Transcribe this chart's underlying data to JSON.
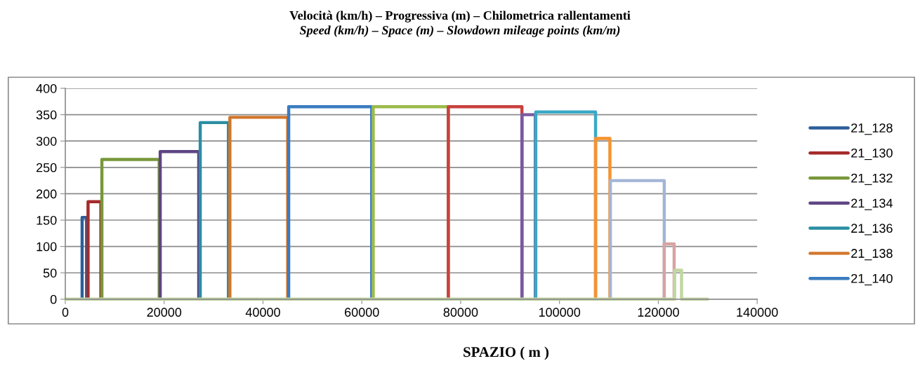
{
  "chart_data": {
    "type": "line",
    "title": "Velocità (km/h) – Progressiva (m) – Chilometrica rallentamenti",
    "subtitle": "Speed (km/h) – Space (m) – Slowdown mileage points (km/m)",
    "xlabel": "SPAZIO ( m )",
    "xlim": [
      0,
      140000
    ],
    "xticks": [
      0,
      20000,
      40000,
      60000,
      80000,
      100000,
      120000,
      140000
    ],
    "ylim": [
      0,
      400
    ],
    "yticks": [
      0,
      50,
      100,
      150,
      200,
      250,
      300,
      350,
      400
    ],
    "grid": "y",
    "legend": "right",
    "marker": "none",
    "line_style": "solid",
    "series": [
      {
        "name": "21_128",
        "color": "#2c5f9a",
        "x": [
          3400,
          3400,
          4300,
          4300
        ],
        "values": [
          0,
          155,
          155,
          0
        ]
      },
      {
        "name": "21_130",
        "color": "#a52a2a",
        "x": [
          4600,
          4600,
          7200,
          7200
        ],
        "values": [
          0,
          185,
          185,
          0
        ]
      },
      {
        "name": "21_132",
        "color": "#77973a",
        "x": [
          7400,
          7400,
          19000,
          19000
        ],
        "values": [
          0,
          265,
          265,
          0
        ]
      },
      {
        "name": "21_134",
        "color": "#5f4584",
        "x": [
          19200,
          19200,
          27000,
          27000
        ],
        "values": [
          0,
          280,
          280,
          0
        ]
      },
      {
        "name": "21_136",
        "color": "#2a8ea3",
        "x": [
          27300,
          27300,
          33000,
          33000
        ],
        "values": [
          0,
          335,
          335,
          0
        ]
      },
      {
        "name": "21_138",
        "color": "#d2762b",
        "x": [
          33300,
          33300,
          45000,
          45000
        ],
        "values": [
          0,
          345,
          345,
          0
        ]
      },
      {
        "name": "21_140",
        "color": "#3a7cc0",
        "x": [
          45200,
          45200,
          62000,
          62000
        ],
        "values": [
          0,
          365,
          365,
          0
        ]
      },
      {
        "color": "#9bbb4b",
        "x": [
          62300,
          62300,
          77500,
          77500
        ],
        "values": [
          0,
          365,
          365,
          0
        ]
      },
      {
        "color": "#c8413e",
        "x": [
          77500,
          77500,
          92400,
          92400
        ],
        "values": [
          0,
          365,
          365,
          0
        ]
      },
      {
        "color": "#7b58a0",
        "x": [
          92400,
          92400,
          95100,
          95100
        ],
        "values": [
          0,
          350,
          350,
          0
        ]
      },
      {
        "color": "#3aa8c4",
        "x": [
          95200,
          95200,
          107300,
          107300
        ],
        "values": [
          0,
          355,
          355,
          0
        ]
      },
      {
        "color": "#f7922e",
        "x": [
          107300,
          107300,
          110200,
          110200
        ],
        "values": [
          0,
          305,
          305,
          0
        ]
      },
      {
        "color": "#a3b5d6",
        "x": [
          110300,
          110300,
          121200,
          121200
        ],
        "values": [
          0,
          225,
          225,
          0
        ]
      },
      {
        "color": "#d8a3a2",
        "x": [
          121200,
          121200,
          123200,
          123200
        ],
        "values": [
          0,
          105,
          105,
          0
        ]
      },
      {
        "color": "#c1d6a1",
        "x": [
          0,
          123300,
          123300,
          124700,
          124700,
          130000
        ],
        "values": [
          0,
          0,
          55,
          55,
          0,
          0
        ]
      }
    ]
  }
}
